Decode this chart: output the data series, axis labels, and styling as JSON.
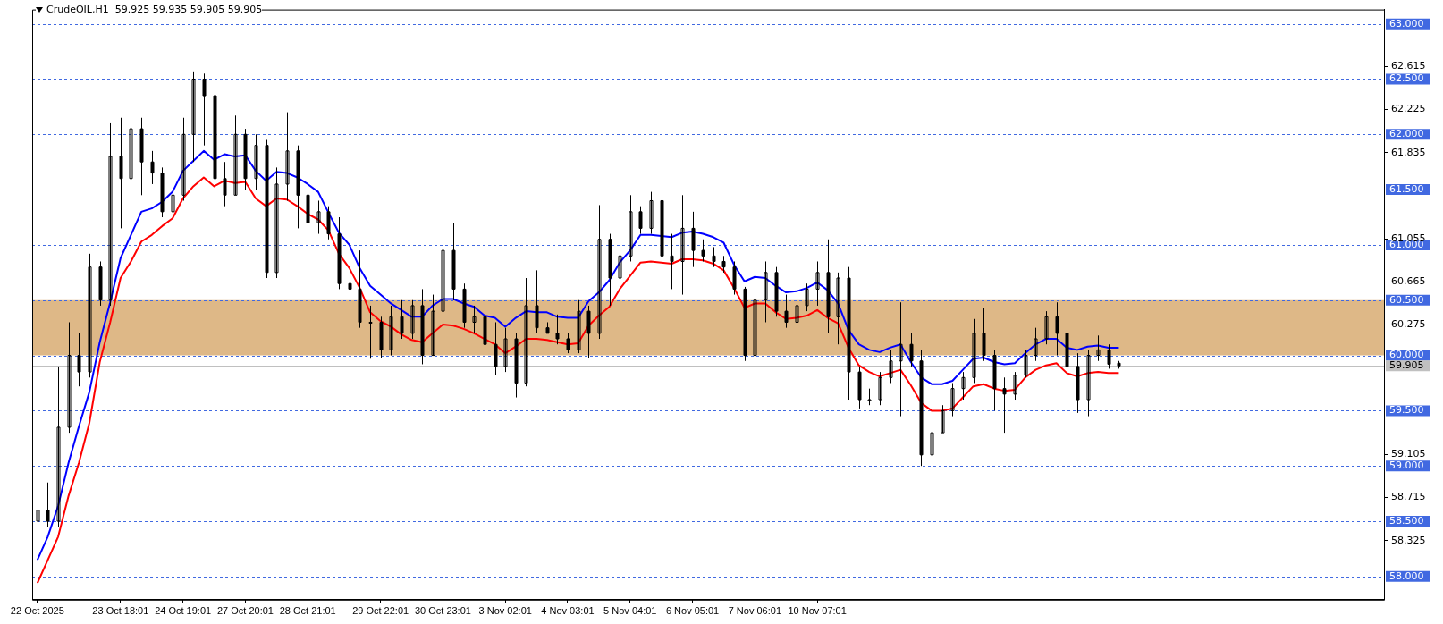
{
  "chart_data": {
    "type": "candlestick",
    "title": "CrudeOIL,H1  59.925 59.935 59.905 59.905",
    "categories": [
      "22 Oct 2025",
      null,
      null,
      null,
      null,
      null,
      null,
      null,
      "23 Oct 18:01",
      null,
      null,
      null,
      null,
      null,
      "24 Oct 19:01",
      null,
      null,
      null,
      null,
      null,
      "27 Oct 20:01",
      null,
      null,
      null,
      null,
      null,
      "28 Oct 21:01",
      null,
      null,
      null,
      null,
      null,
      null,
      "29 Oct 22:01",
      null,
      null,
      null,
      null,
      null,
      "30 Oct 23:01",
      null,
      null,
      null,
      null,
      null,
      "3 Nov 02:01",
      null,
      null,
      null,
      null,
      null,
      "4 Nov 03:01",
      null,
      null,
      null,
      null,
      null,
      "5 Nov 04:01",
      null,
      null,
      null,
      null,
      null,
      "6 Nov 05:01",
      null,
      null,
      null,
      null,
      null,
      "7 Nov 06:01",
      null,
      null,
      null,
      null,
      null,
      "10 Nov 07:01",
      null,
      null,
      null,
      null,
      null,
      null,
      null,
      null,
      null,
      null,
      null,
      null,
      null,
      null,
      null,
      null,
      null,
      null,
      null,
      null,
      null,
      null,
      null,
      null,
      null,
      null,
      null,
      null,
      null,
      null,
      null,
      null,
      null,
      null,
      null,
      null,
      null,
      null,
      null,
      null,
      null,
      null,
      null,
      null,
      null,
      null,
      null,
      null,
      null,
      null,
      null,
      null,
      null,
      null
    ],
    "ohlc": [
      [
        58.5,
        58.9,
        58.35,
        58.6
      ],
      [
        58.6,
        58.85,
        58.45,
        58.5
      ],
      [
        58.5,
        59.9,
        58.45,
        59.35
      ],
      [
        59.35,
        60.3,
        59.3,
        60.0
      ],
      [
        60.0,
        60.2,
        59.72,
        59.85
      ],
      [
        59.85,
        60.92,
        59.8,
        60.8
      ],
      [
        60.8,
        60.85,
        60.45,
        60.5
      ],
      [
        60.5,
        62.1,
        60.45,
        61.8
      ],
      [
        61.8,
        62.15,
        61.15,
        61.6
      ],
      [
        61.6,
        62.21,
        61.5,
        62.05
      ],
      [
        62.05,
        62.15,
        61.45,
        61.75
      ],
      [
        61.75,
        61.85,
        61.55,
        61.65
      ],
      [
        61.65,
        61.7,
        61.25,
        61.3
      ],
      [
        61.3,
        61.55,
        61.3,
        61.45
      ],
      [
        61.45,
        62.15,
        61.4,
        62.0
      ],
      [
        62.0,
        62.57,
        61.75,
        62.5
      ],
      [
        62.5,
        62.55,
        61.9,
        62.35
      ],
      [
        62.35,
        62.45,
        61.5,
        61.6
      ],
      [
        61.6,
        61.75,
        61.35,
        61.45
      ],
      [
        61.45,
        62.17,
        61.45,
        62.0
      ],
      [
        62.0,
        62.05,
        61.5,
        61.6
      ],
      [
        61.6,
        62.0,
        61.5,
        61.9
      ],
      [
        61.9,
        61.95,
        60.7,
        60.75
      ],
      [
        60.75,
        61.7,
        60.7,
        61.55
      ],
      [
        61.55,
        62.2,
        61.4,
        61.85
      ],
      [
        61.85,
        61.9,
        61.15,
        61.45
      ],
      [
        61.45,
        61.6,
        61.15,
        61.2
      ],
      [
        61.2,
        61.4,
        61.1,
        61.3
      ],
      [
        61.3,
        61.35,
        61.05,
        61.1
      ],
      [
        61.1,
        61.25,
        60.6,
        60.65
      ],
      [
        60.65,
        60.8,
        60.1,
        60.6
      ],
      [
        60.6,
        60.95,
        60.25,
        60.3
      ],
      [
        60.3,
        60.45,
        59.97,
        60.3
      ],
      [
        60.3,
        60.35,
        59.98,
        60.05
      ],
      [
        60.05,
        60.45,
        60.0,
        60.35
      ],
      [
        60.35,
        60.5,
        60.15,
        60.2
      ],
      [
        60.2,
        60.5,
        60.15,
        60.45
      ],
      [
        60.45,
        60.6,
        59.92,
        60.0
      ],
      [
        60.0,
        60.55,
        60.0,
        60.4
      ],
      [
        60.4,
        61.2,
        60.35,
        60.95
      ],
      [
        60.95,
        61.2,
        60.5,
        60.6
      ],
      [
        60.6,
        60.65,
        60.25,
        60.3
      ],
      [
        60.3,
        60.45,
        60.2,
        60.35
      ],
      [
        60.35,
        60.45,
        60.0,
        60.1
      ],
      [
        60.1,
        60.3,
        59.82,
        59.9
      ],
      [
        59.9,
        60.25,
        59.85,
        60.15
      ],
      [
        60.15,
        60.2,
        59.62,
        59.75
      ],
      [
        59.75,
        60.7,
        59.72,
        60.45
      ],
      [
        60.45,
        60.77,
        60.2,
        60.25
      ],
      [
        60.25,
        60.3,
        60.2,
        60.2
      ],
      [
        60.2,
        60.37,
        60.1,
        60.15
      ],
      [
        60.15,
        60.2,
        60.02,
        60.05
      ],
      [
        60.05,
        60.5,
        60.02,
        60.4
      ],
      [
        60.4,
        60.45,
        59.98,
        60.2
      ],
      [
        60.2,
        61.36,
        60.15,
        61.05
      ],
      [
        61.05,
        61.1,
        60.45,
        60.7
      ],
      [
        60.7,
        61.0,
        60.65,
        60.9
      ],
      [
        60.9,
        61.45,
        60.85,
        61.3
      ],
      [
        61.3,
        61.35,
        61.1,
        61.15
      ],
      [
        61.15,
        61.48,
        61.1,
        61.4
      ],
      [
        61.4,
        61.45,
        60.68,
        60.9
      ],
      [
        60.9,
        61.1,
        60.6,
        60.85
      ],
      [
        60.85,
        61.45,
        60.55,
        61.15
      ],
      [
        61.15,
        61.3,
        60.8,
        60.95
      ],
      [
        60.95,
        61.05,
        60.85,
        60.9
      ],
      [
        60.9,
        60.98,
        60.8,
        60.85
      ],
      [
        60.85,
        60.9,
        60.75,
        60.8
      ],
      [
        60.8,
        60.85,
        60.55,
        60.6
      ],
      [
        60.6,
        60.62,
        59.95,
        60.0
      ],
      [
        60.0,
        60.52,
        59.95,
        60.5
      ],
      [
        60.5,
        60.85,
        60.3,
        60.75
      ],
      [
        60.75,
        60.8,
        60.35,
        60.4
      ],
      [
        60.4,
        60.55,
        60.25,
        60.3
      ],
      [
        60.3,
        60.5,
        60.0,
        60.45
      ],
      [
        60.45,
        60.65,
        60.4,
        60.6
      ],
      [
        60.6,
        60.85,
        60.45,
        60.75
      ],
      [
        60.75,
        61.05,
        60.2,
        60.35
      ],
      [
        60.35,
        60.75,
        60.1,
        60.7
      ],
      [
        60.7,
        60.8,
        59.6,
        59.85
      ],
      [
        59.85,
        59.9,
        59.52,
        59.6
      ],
      [
        59.6,
        59.7,
        59.55,
        59.6
      ],
      [
        59.6,
        59.85,
        59.55,
        59.8
      ],
      [
        59.8,
        60.05,
        59.75,
        59.95
      ],
      [
        59.95,
        60.48,
        59.45,
        60.1
      ],
      [
        60.1,
        60.2,
        59.9,
        59.95
      ],
      [
        59.95,
        60.05,
        59.0,
        59.1
      ],
      [
        59.1,
        59.35,
        59.0,
        59.3
      ],
      [
        59.3,
        59.55,
        59.3,
        59.5
      ],
      [
        59.5,
        59.75,
        59.45,
        59.7
      ],
      [
        59.7,
        59.85,
        59.6,
        59.8
      ],
      [
        59.8,
        60.33,
        59.75,
        60.2
      ],
      [
        60.2,
        60.43,
        59.95,
        60.0
      ],
      [
        60.0,
        60.05,
        59.5,
        59.7
      ],
      [
        59.7,
        59.8,
        59.3,
        59.65
      ],
      [
        59.65,
        59.85,
        59.6,
        59.82
      ],
      [
        59.82,
        60.05,
        59.8,
        60.0
      ],
      [
        60.0,
        60.25,
        59.95,
        60.15
      ],
      [
        60.15,
        60.4,
        60.1,
        60.35
      ],
      [
        60.35,
        60.48,
        60.0,
        60.2
      ],
      [
        60.2,
        60.35,
        59.8,
        59.9
      ],
      [
        59.9,
        60.02,
        59.48,
        59.6
      ],
      [
        59.6,
        60.05,
        59.45,
        60.0
      ],
      [
        60.0,
        60.18,
        59.95,
        60.05
      ],
      [
        60.05,
        60.1,
        59.88,
        59.92
      ],
      [
        59.93,
        59.95,
        59.88,
        59.905
      ],
      null,
      null,
      null,
      null,
      null,
      null,
      null,
      null,
      null,
      null,
      null,
      null,
      null,
      null,
      null,
      null,
      null,
      null,
      null,
      null,
      null,
      null,
      null,
      null,
      null
    ],
    "series": [
      {
        "type": "line",
        "color": "#0000ff",
        "values": [
          58.15,
          58.36,
          58.64,
          59.03,
          59.36,
          59.67,
          60.12,
          60.48,
          60.88,
          61.09,
          61.3,
          61.33,
          61.39,
          61.48,
          61.67,
          61.76,
          61.85,
          61.77,
          61.82,
          61.8,
          61.81,
          61.67,
          61.58,
          61.66,
          61.65,
          61.61,
          61.55,
          61.48,
          61.29,
          61.11,
          61.0,
          60.79,
          60.63,
          60.55,
          60.47,
          60.41,
          60.35,
          60.35,
          60.45,
          60.51,
          60.51,
          60.47,
          60.44,
          60.36,
          60.34,
          60.26,
          60.34,
          60.4,
          60.39,
          60.39,
          60.35,
          60.34,
          60.34,
          60.49,
          60.57,
          60.68,
          60.84,
          60.95,
          61.09,
          61.09,
          61.08,
          61.07,
          61.11,
          61.12,
          61.1,
          61.07,
          61.02,
          60.82,
          60.67,
          60.71,
          60.7,
          60.63,
          60.57,
          60.58,
          60.61,
          60.66,
          60.59,
          60.47,
          60.23,
          60.1,
          60.05,
          60.03,
          60.07,
          60.1,
          59.94,
          59.8,
          59.74,
          59.74,
          59.77,
          59.87,
          59.97,
          59.98,
          59.94,
          59.92,
          59.93,
          60.02,
          60.1,
          60.15,
          60.15,
          60.07,
          60.05,
          60.08,
          60.09,
          60.07,
          60.07,
          null,
          null,
          null,
          null,
          null,
          null,
          null,
          null,
          null,
          null,
          null,
          null,
          null,
          null,
          null,
          null,
          null,
          null,
          null,
          null,
          null,
          null,
          null,
          null,
          null
        ]
      },
      {
        "type": "line",
        "color": "#ff0000",
        "values": [
          57.94,
          58.15,
          58.36,
          58.73,
          59.03,
          59.39,
          59.94,
          60.3,
          60.7,
          60.85,
          61.03,
          61.09,
          61.17,
          61.24,
          61.42,
          61.53,
          61.61,
          61.53,
          61.58,
          61.56,
          61.57,
          61.42,
          61.35,
          61.42,
          61.41,
          61.35,
          61.28,
          61.23,
          61.13,
          60.92,
          60.79,
          60.61,
          60.39,
          60.31,
          60.26,
          60.19,
          60.14,
          60.12,
          60.2,
          60.28,
          60.27,
          60.24,
          60.2,
          60.15,
          60.1,
          60.02,
          60.08,
          60.15,
          60.15,
          60.14,
          60.12,
          60.1,
          60.11,
          60.27,
          60.36,
          60.44,
          60.6,
          60.72,
          60.84,
          60.85,
          60.84,
          60.83,
          60.87,
          60.87,
          60.86,
          60.83,
          60.77,
          60.61,
          60.43,
          60.47,
          60.47,
          60.39,
          60.33,
          60.34,
          60.36,
          60.41,
          60.34,
          60.29,
          60.07,
          59.91,
          59.85,
          59.81,
          59.84,
          59.87,
          59.73,
          59.57,
          59.5,
          59.5,
          59.52,
          59.62,
          59.72,
          59.74,
          59.7,
          59.68,
          59.69,
          59.8,
          59.87,
          59.91,
          59.93,
          59.84,
          59.81,
          59.84,
          59.85,
          59.84,
          59.84,
          null,
          null,
          null,
          null,
          null,
          null,
          null,
          null,
          null,
          null,
          null,
          null,
          null,
          null,
          null,
          null,
          null,
          null,
          null,
          null,
          null,
          null,
          null,
          null,
          null
        ]
      }
    ],
    "ylim": [
      57.79,
      63.13
    ],
    "yticks": [
      62.615,
      62.225,
      61.835,
      61.055,
      60.665,
      60.275,
      59.105,
      58.715,
      58.325
    ],
    "ref_lines": [
      {
        "axis": "y",
        "value": 63.0,
        "label": "63.000",
        "color": "#4169e1",
        "line_style": "dashed"
      },
      {
        "axis": "y",
        "value": 62.5,
        "label": "62.500",
        "color": "#4169e1",
        "line_style": "dashed"
      },
      {
        "axis": "y",
        "value": 62.0,
        "label": "62.000",
        "color": "#4169e1",
        "line_style": "dashed"
      },
      {
        "axis": "y",
        "value": 61.5,
        "label": "61.500",
        "color": "#4169e1",
        "line_style": "dashed"
      },
      {
        "axis": "y",
        "value": 61.0,
        "label": "61.000",
        "color": "#4169e1",
        "line_style": "dashed"
      },
      {
        "axis": "y",
        "value": 60.5,
        "label": "60.500",
        "color": "#4169e1",
        "line_style": "dashed"
      },
      {
        "axis": "y",
        "value": 60.0,
        "label": "60.000",
        "color": "#4169e1",
        "line_style": "dashed"
      },
      {
        "axis": "y",
        "value": 59.5,
        "label": "59.500",
        "color": "#4169e1",
        "line_style": "dashed"
      },
      {
        "axis": "y",
        "value": 59.0,
        "label": "59.000",
        "color": "#4169e1",
        "line_style": "dashed"
      },
      {
        "axis": "y",
        "value": 58.5,
        "label": "58.500",
        "color": "#4169e1",
        "line_style": "dashed"
      },
      {
        "axis": "y",
        "value": 58.0,
        "label": "58.000",
        "color": "#4169e1",
        "line_style": "dashed"
      },
      {
        "axis": "y",
        "value": 59.905,
        "label": "59.905",
        "color": "#c0c0c0",
        "line_style": "solid"
      }
    ],
    "bands": [
      {
        "axis": "y",
        "from": 60.0,
        "to": 60.5,
        "color": "#deb887"
      }
    ],
    "grid": false,
    "legend": false
  }
}
